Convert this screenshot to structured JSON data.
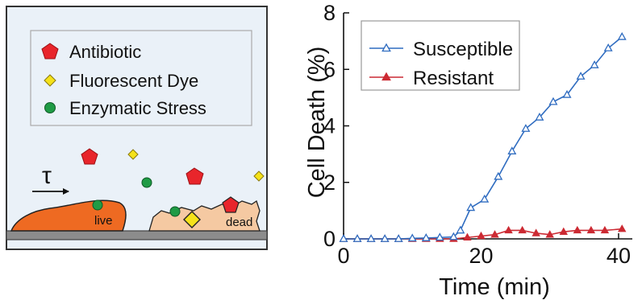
{
  "schematic": {
    "legend": [
      {
        "label": "Antibiotic",
        "icon": "pentagon-icon",
        "color": "#e8252b"
      },
      {
        "label": "Fluorescent Dye",
        "icon": "diamond-icon",
        "color": "#f5e21a"
      },
      {
        "label": "Enzymatic Stress",
        "icon": "circle-icon",
        "color": "#1f9b45"
      }
    ],
    "tau_label": "τ",
    "live_label": "live",
    "dead_label": "dead",
    "colors": {
      "panel_bg": "#eaf1f8",
      "live_cell": "#ee6a22",
      "dead_cell": "#f5c9a2",
      "substrate": "#8c8c8c"
    }
  },
  "chart_data": {
    "type": "line",
    "xlabel": "Time (min)",
    "ylabel": "Cell Death (%)",
    "xlim": [
      0,
      42
    ],
    "ylim": [
      0,
      8
    ],
    "x_ticks": [
      0,
      20,
      40
    ],
    "y_ticks": [
      0,
      2,
      4,
      6,
      8
    ],
    "legend_position": "top-left",
    "grid": false,
    "series": [
      {
        "name": "Susceptible",
        "color": "#2f6cc0",
        "marker": "triangle-open",
        "x": [
          0,
          2,
          4,
          6,
          8,
          10,
          12,
          14,
          16,
          17,
          18.5,
          20.5,
          22.5,
          24.5,
          26.5,
          28.5,
          30.5,
          32.5,
          34.5,
          36.5,
          38.5,
          40.5
        ],
        "y": [
          0,
          0,
          0,
          0,
          0,
          0.02,
          0.03,
          0.05,
          0.07,
          0.3,
          1.1,
          1.4,
          2.2,
          3.1,
          3.9,
          4.3,
          4.85,
          5.1,
          5.75,
          6.15,
          6.75,
          7.15
        ]
      },
      {
        "name": "Resistant",
        "color": "#cc2a33",
        "marker": "triangle-filled",
        "x": [
          0,
          2,
          4,
          6,
          8,
          10,
          12,
          14,
          16,
          18,
          20,
          22,
          24,
          26,
          28,
          30,
          32,
          34,
          36,
          38,
          40.5
        ],
        "y": [
          0,
          0,
          0,
          0,
          0,
          0,
          0,
          0,
          0,
          0.05,
          0.1,
          0.15,
          0.3,
          0.3,
          0.2,
          0.15,
          0.25,
          0.3,
          0.3,
          0.3,
          0.35
        ]
      }
    ]
  }
}
